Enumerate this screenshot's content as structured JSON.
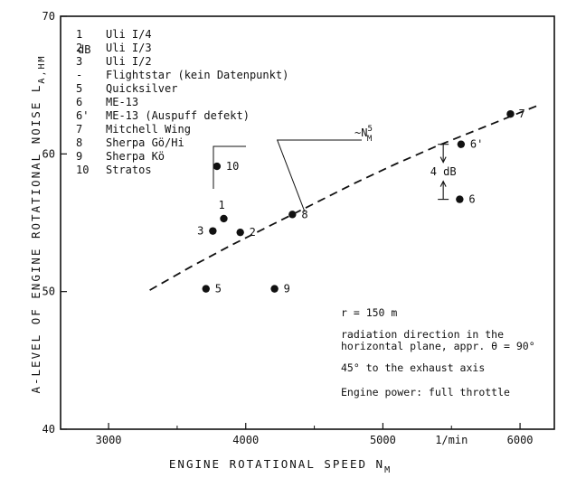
{
  "chart_data": {
    "type": "scatter",
    "xlabel": "ENGINE ROTATIONAL SPEED",
    "xlabel_sub": "M",
    "xlabel_sym": "N",
    "ylabel": "A-LEVEL OF ENGINE ROTATIONAL NOISE",
    "ylabel_sym": "L",
    "ylabel_sub": "A,HM",
    "y_unit": "dB",
    "x_unit": "1/min",
    "xlim": [
      2650,
      6250
    ],
    "ylim": [
      40,
      70
    ],
    "x_ticks": [
      3000,
      4000,
      5000,
      6000
    ],
    "y_ticks": [
      40,
      50,
      60,
      70
    ],
    "x_tick_labels": [
      "3000",
      "4000",
      "5000",
      "6000"
    ],
    "y_tick_labels": [
      "40",
      "50",
      "60",
      "70"
    ],
    "grid": false,
    "legend": {
      "position": "top-left",
      "entries": [
        {
          "key": "1",
          "label": "Uli I/4"
        },
        {
          "key": "2",
          "label": "Uli I/3"
        },
        {
          "key": "3",
          "label": "Uli I/2"
        },
        {
          "key": "-",
          "label": "Flightstar (kein Datenpunkt)"
        },
        {
          "key": "5",
          "label": "Quicksilver"
        },
        {
          "key": "6",
          "label": "ME-13"
        },
        {
          "key": "6'",
          "label": "ME-13 (Auspuff defekt)"
        },
        {
          "key": "7",
          "label": "Mitchell Wing"
        },
        {
          "key": "8",
          "label": "Sherpa Gö/Hi"
        },
        {
          "key": "9",
          "label": "Sherpa Kö"
        },
        {
          "key": "10",
          "label": "Stratos"
        }
      ]
    },
    "points": [
      {
        "label": "1",
        "x": 3840,
        "y": 55.3
      },
      {
        "label": "2",
        "x": 3960,
        "y": 54.3
      },
      {
        "label": "3",
        "x": 3760,
        "y": 54.4
      },
      {
        "label": "5",
        "x": 3710,
        "y": 50.2
      },
      {
        "label": "6",
        "x": 5560,
        "y": 56.7
      },
      {
        "label": "6'",
        "x": 5570,
        "y": 60.7
      },
      {
        "label": "7",
        "x": 5930,
        "y": 62.9
      },
      {
        "label": "8",
        "x": 4340,
        "y": 55.6
      },
      {
        "label": "9",
        "x": 4210,
        "y": 50.2
      },
      {
        "label": "10",
        "x": 3790,
        "y": 59.1
      }
    ],
    "trend_line": {
      "label": "~N",
      "label_sup": "5",
      "label_sub": "M",
      "x": [
        3300,
        3600,
        3900,
        4200,
        4500,
        4800,
        5100,
        5400,
        5700,
        6000,
        6150
      ],
      "y": [
        50.1,
        51.8,
        53.4,
        54.9,
        56.4,
        57.9,
        59.3,
        60.6,
        61.8,
        63.0,
        63.6
      ]
    },
    "annotations": {
      "delta_label": "4 dB",
      "notes": [
        "r = 150 m",
        "radiation direction in the",
        "horizontal plane, appr. θ = 90°",
        "45° to the exhaust axis",
        "Engine power: full throttle"
      ]
    }
  }
}
